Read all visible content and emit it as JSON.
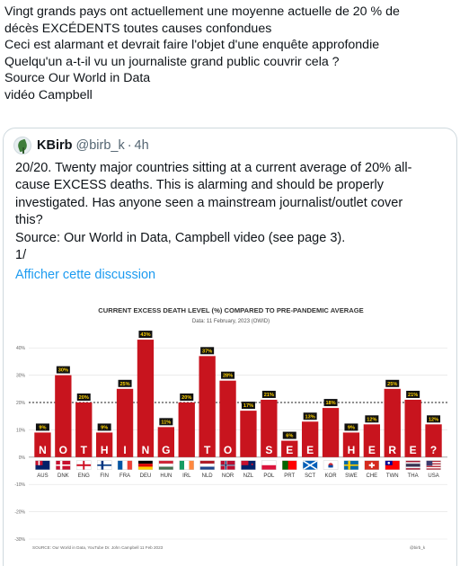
{
  "tweet": {
    "lines": [
      "Vingt grands pays ont actuellement une moyenne actuelle de 20 % de",
      "décès EXCÉDENTS toutes causes confondues",
      "Ceci est alarmant et devrait faire l'objet d'une enquête approfondie",
      "Quelqu'un a-t-il vu un journaliste grand public couvrir cela ?",
      "Source Our World in Data",
      "vidéo Campbell"
    ]
  },
  "quote": {
    "name": "KBirb",
    "handle": "@birb_k",
    "dot": "·",
    "time": "4h",
    "avatar_icon": "plant-leaf-avatar",
    "body_lines": [
      "20/20. Twenty major countries sitting at a current average of 20% all-",
      "cause EXCESS deaths. This is alarming and should be properly",
      "investigated. Has anyone seen a mainstream journalist/outlet cover",
      "this?",
      "Source: Our World in Data, Campbell video (see page 3).",
      "1/"
    ],
    "show_thread": "Afficher cette discussion",
    "link_color": "#1d9bf0"
  },
  "chart_data": {
    "type": "bar",
    "title": "CURRENT EXCESS DEATH LEVEL (%) COMPARED TO PRE-PANDEMIC AVERAGE",
    "subtitle": "Data: 11 February, 2023 (OWID)",
    "categories": [
      "AUS",
      "DNK",
      "ENG",
      "FIN",
      "FRA",
      "DEU",
      "HUN",
      "IRL",
      "NLD",
      "NOR",
      "NZL",
      "POL",
      "PRT",
      "SCT",
      "KOR",
      "SWE",
      "CHE",
      "TWN",
      "THA",
      "USA"
    ],
    "values": [
      9,
      30,
      20,
      9,
      25,
      43,
      11,
      20,
      37,
      28,
      17,
      21,
      6,
      13,
      18,
      9,
      12,
      25,
      21,
      12
    ],
    "value_labels": [
      "9%",
      "30%",
      "20%",
      "9%",
      "25%",
      "43%",
      "11%",
      "20%",
      "37%",
      "28%",
      "17%",
      "21%",
      "6%",
      "13%",
      "18%",
      "9%",
      "12%",
      "25%",
      "21%",
      "12%"
    ],
    "letters": [
      "N",
      "O",
      "T",
      "H",
      "I",
      "N",
      "G",
      "",
      "T",
      "O",
      "",
      "S",
      "E",
      "E",
      "",
      "H",
      "E",
      "R",
      "E",
      "?"
    ],
    "yticks": [
      40,
      30,
      20,
      10,
      0,
      -10,
      -20,
      -30
    ],
    "ytick_labels": [
      "40%",
      "30%",
      "20%",
      "10%",
      "0%",
      "-10%",
      "-20%",
      "-30%"
    ],
    "ylim": [
      -30,
      45
    ],
    "reference_line": 20,
    "source": "SOURCE: Our World in Data, YouTube Dr. John Campbell 11 Feb 2023",
    "watermark": "@birb_k",
    "bar_color": "#c8141e",
    "grid": true
  }
}
